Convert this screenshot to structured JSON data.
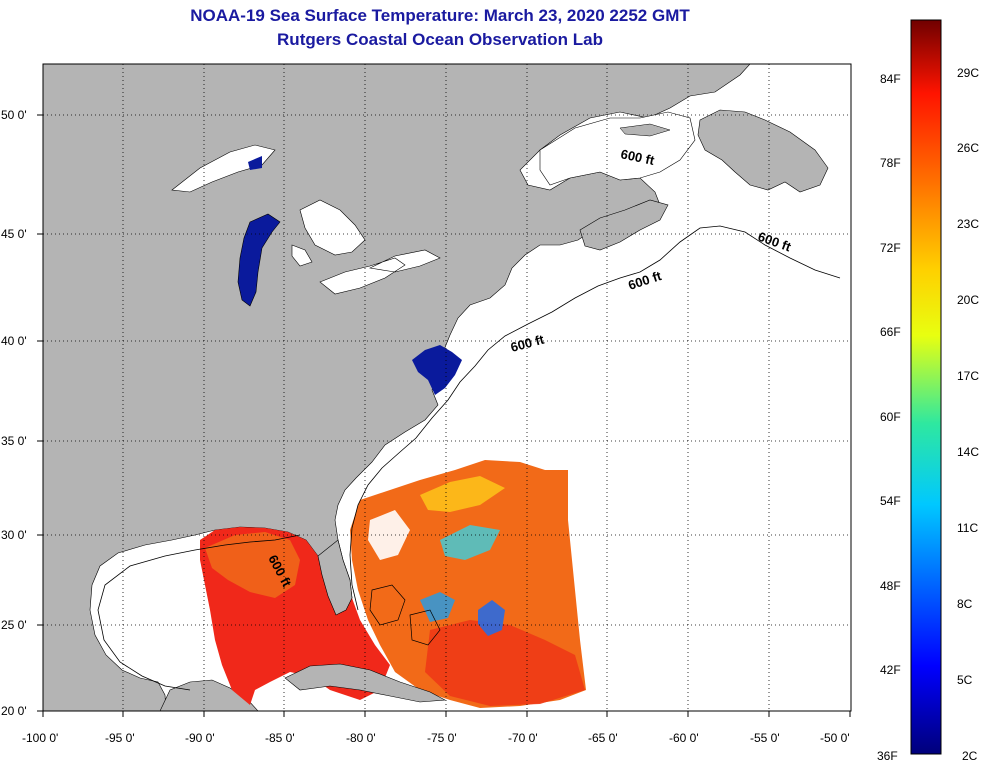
{
  "title": {
    "line1": "NOAA-19 Sea Surface Temperature:  March 23, 2020 2252 GMT",
    "line2": "Rutgers Coastal Ocean Observation Lab"
  },
  "colors": {
    "land": "#b4b4b4",
    "ocean_nodata": "#ffffff",
    "title_text": "#1a1aa0",
    "grid": "#000000"
  },
  "map": {
    "lon_labels": [
      "-100 0'",
      "-95 0'",
      "-90 0'",
      "-85 0'",
      "-80 0'",
      "-75 0'",
      "-70 0'",
      "-65 0'",
      "-60 0'",
      "-55 0'",
      "-50 0'"
    ],
    "lat_labels": [
      "50 0'",
      "45 0'",
      "40 0'",
      "35 0'",
      "30 0'",
      "25 0'",
      "20 0'"
    ],
    "contour_labels": [
      "600 ft",
      "600 ft",
      "600 ft",
      "600 ft",
      "600 ft"
    ]
  },
  "colorbar": {
    "fahrenheit": [
      "84F",
      "78F",
      "72F",
      "66F",
      "60F",
      "54F",
      "48F",
      "42F",
      "36F"
    ],
    "celsius": [
      "29C",
      "26C",
      "23C",
      "20C",
      "17C",
      "14C",
      "11C",
      "8C",
      "5C",
      "2C"
    ]
  }
}
